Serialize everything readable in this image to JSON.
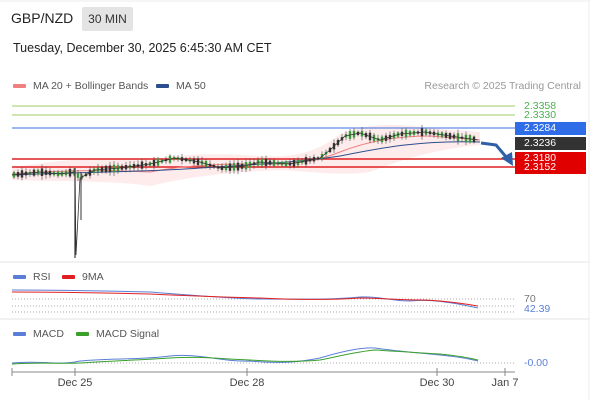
{
  "header": {
    "pair": "GBP/NZD",
    "timeframe": "30 MIN",
    "timestamp": "Tuesday, December 30, 2025 6:45:30 AM CET"
  },
  "legend": {
    "ma20_label": "MA 20 + Bollinger Bands",
    "ma50_label": "MA 50",
    "credit": "Research © 2025 Trading Central",
    "ma20_color": "#f08080",
    "ma50_color": "#2b4f8c"
  },
  "levels": {
    "r2": "2.3358",
    "r1": "2.3330",
    "ma50": "2.3284",
    "last": "2.3236",
    "s1": "2.3180",
    "s2": "2.3152"
  },
  "rsi": {
    "label": "RSI",
    "ma_label": "9MA",
    "level": "70",
    "value": "42.39"
  },
  "macd": {
    "label": "MACD",
    "signal_label": "MACD Signal",
    "value": "-0.00"
  },
  "xaxis": [
    "Dec 25",
    "Dec 28",
    "Dec 30",
    "Jan 7"
  ],
  "chart_data": {
    "type": "line",
    "title": "GBP/NZD",
    "x": [
      "Dec 25",
      "Dec 28",
      "Dec 30",
      "Jan 7"
    ],
    "ylim": [
      2.3,
      2.34
    ],
    "series": [
      {
        "name": "GBP/NZD",
        "values": [
          2.315,
          2.3195,
          2.3256,
          2.3236
        ]
      }
    ],
    "levels": [
      2.3358,
      2.333,
      2.3284,
      2.3236,
      2.318,
      2.3152
    ],
    "legend_position": "top-left"
  }
}
